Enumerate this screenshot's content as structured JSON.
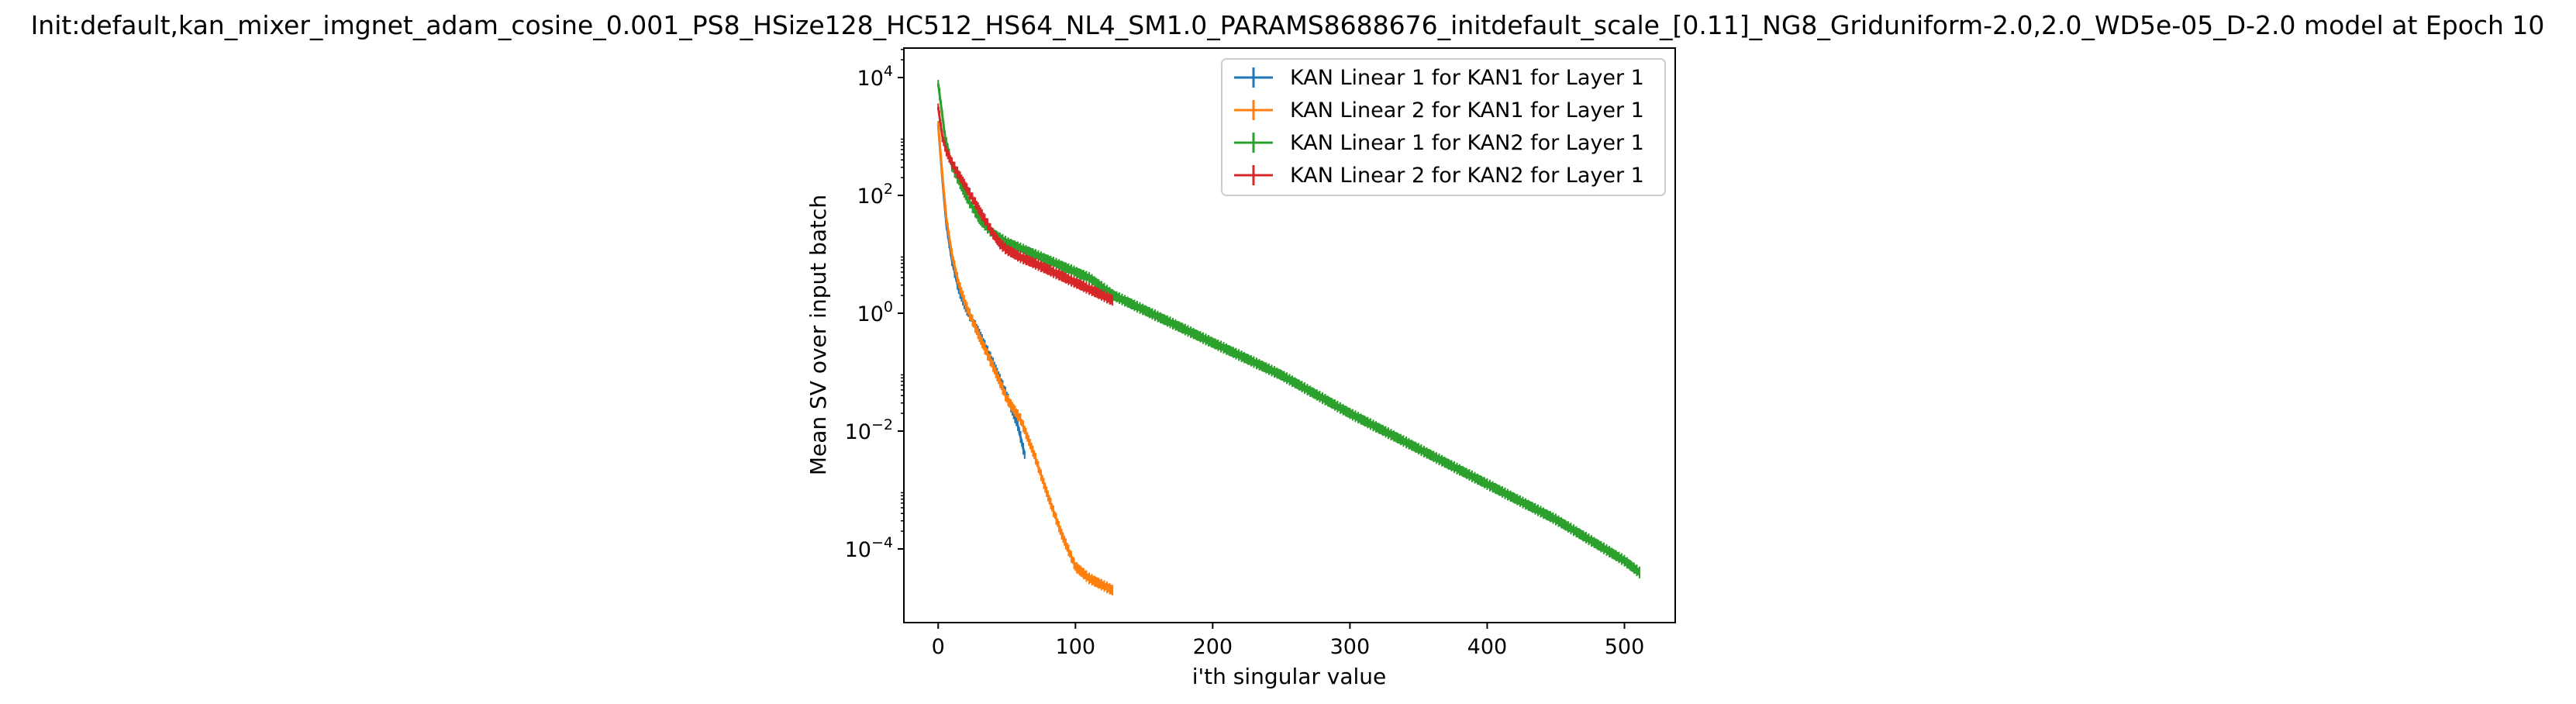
{
  "chart_data": {
    "type": "line",
    "title": "Init:default,kan_mixer_imgnet_adam_cosine_0.001_PS8_HSize128_HC512_HS64_NL4_SM1.0_PARAMS8688676_initdefault_scale_[0.11]_NG8_Griduniform-2.0,2.0_WD5e-05_D-2.0 model at Epoch 10",
    "xlabel": "i'th singular value",
    "ylabel": "Mean SV over input batch",
    "yscale": "log",
    "xlim": [
      -25,
      537
    ],
    "ylim_log10": [
      -5.25,
      4.5
    ],
    "x_ticks": [
      {
        "value": 0,
        "label": "0"
      },
      {
        "value": 100,
        "label": "100"
      },
      {
        "value": 200,
        "label": "200"
      },
      {
        "value": 300,
        "label": "300"
      },
      {
        "value": 400,
        "label": "400"
      },
      {
        "value": 500,
        "label": "500"
      }
    ],
    "y_ticks": [
      {
        "exp": 4,
        "base": "10",
        "sup": "4"
      },
      {
        "exp": 2,
        "base": "10",
        "sup": "2"
      },
      {
        "exp": 0,
        "base": "10",
        "sup": "0"
      },
      {
        "exp": -2,
        "base": "10",
        "sup": "−2"
      },
      {
        "exp": -4,
        "base": "10",
        "sup": "−4"
      }
    ],
    "grid": false,
    "legend_position": "top-right",
    "error_bars": true,
    "series": [
      {
        "name": "KAN Linear 1 for KAN1 for Layer 1",
        "color": "#1f77b4",
        "n_points": 64,
        "points_log10": [
          [
            0,
            3.2
          ],
          [
            3,
            2.3
          ],
          [
            6,
            1.5
          ],
          [
            10,
            0.9
          ],
          [
            15,
            0.4
          ],
          [
            20,
            0.1
          ],
          [
            30,
            -0.35
          ],
          [
            40,
            -0.85
          ],
          [
            50,
            -1.4
          ],
          [
            58,
            -1.9
          ],
          [
            63,
            -2.4
          ]
        ]
      },
      {
        "name": "KAN Linear 2 for KAN1 for Layer 1",
        "color": "#ff7f0e",
        "n_points": 128,
        "points_log10": [
          [
            0,
            3.2
          ],
          [
            3,
            2.35
          ],
          [
            6,
            1.6
          ],
          [
            10,
            1.0
          ],
          [
            15,
            0.5
          ],
          [
            20,
            0.15
          ],
          [
            30,
            -0.4
          ],
          [
            40,
            -0.9
          ],
          [
            50,
            -1.45
          ],
          [
            60,
            -1.8
          ],
          [
            70,
            -2.4
          ],
          [
            80,
            -3.1
          ],
          [
            90,
            -3.75
          ],
          [
            100,
            -4.3
          ],
          [
            110,
            -4.5
          ],
          [
            127,
            -4.7
          ]
        ]
      },
      {
        "name": "KAN Linear 1 for KAN2 for Layer 1",
        "color": "#2ca02c",
        "n_points": 512,
        "points_log10": [
          [
            0,
            3.9
          ],
          [
            5,
            3.0
          ],
          [
            10,
            2.5
          ],
          [
            20,
            2.0
          ],
          [
            30,
            1.6
          ],
          [
            40,
            1.35
          ],
          [
            50,
            1.2
          ],
          [
            70,
            1.0
          ],
          [
            90,
            0.8
          ],
          [
            110,
            0.6
          ],
          [
            128,
            0.3
          ],
          [
            200,
            -0.5
          ],
          [
            250,
            -1.05
          ],
          [
            300,
            -1.7
          ],
          [
            350,
            -2.3
          ],
          [
            400,
            -2.9
          ],
          [
            450,
            -3.5
          ],
          [
            500,
            -4.2
          ],
          [
            511,
            -4.4
          ]
        ]
      },
      {
        "name": "KAN Linear 2 for KAN2 for Layer 1",
        "color": "#d62728",
        "n_points": 128,
        "points_log10": [
          [
            0,
            3.5
          ],
          [
            3,
            3.0
          ],
          [
            6,
            2.75
          ],
          [
            10,
            2.55
          ],
          [
            15,
            2.35
          ],
          [
            20,
            2.15
          ],
          [
            25,
            1.95
          ],
          [
            30,
            1.75
          ],
          [
            35,
            1.55
          ],
          [
            40,
            1.35
          ],
          [
            45,
            1.18
          ],
          [
            50,
            1.08
          ],
          [
            60,
            0.95
          ],
          [
            70,
            0.85
          ],
          [
            80,
            0.74
          ],
          [
            90,
            0.63
          ],
          [
            100,
            0.52
          ],
          [
            110,
            0.41
          ],
          [
            120,
            0.3
          ],
          [
            127,
            0.22
          ]
        ]
      }
    ]
  }
}
